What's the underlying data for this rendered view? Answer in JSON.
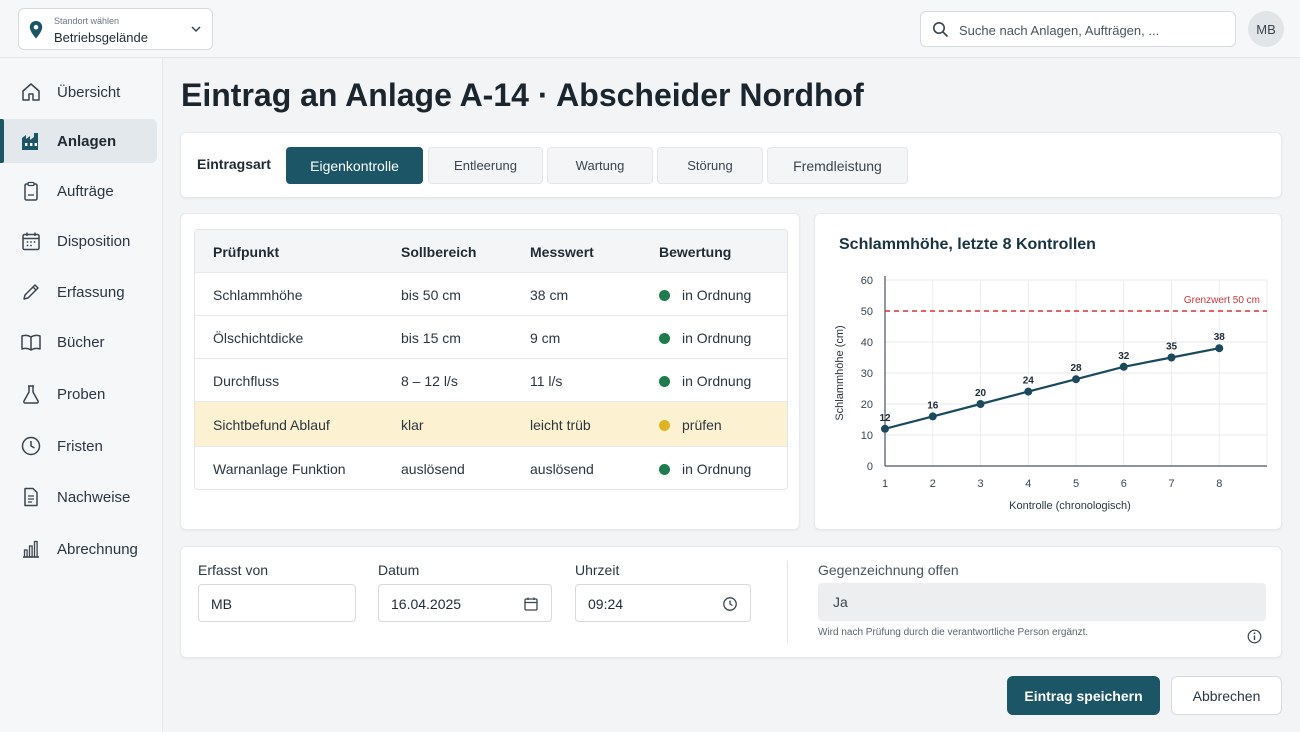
{
  "location": {
    "caption": "Standort wählen",
    "value": "Betriebsgelände"
  },
  "search": {
    "placeholder": "Suche nach Anlagen, Aufträgen, ..."
  },
  "user": {
    "initials": "MB"
  },
  "sidebar": {
    "items": [
      {
        "label": "Übersicht",
        "icon": "home-icon"
      },
      {
        "label": "Anlagen",
        "icon": "plant-icon",
        "active": true
      },
      {
        "label": "Aufträge",
        "icon": "clipboard-icon"
      },
      {
        "label": "Disposition",
        "icon": "calendar-icon"
      },
      {
        "label": "Erfassung",
        "icon": "pencil-icon"
      },
      {
        "label": "Bücher",
        "icon": "book-icon"
      },
      {
        "label": "Proben",
        "icon": "flask-icon"
      },
      {
        "label": "Fristen",
        "icon": "clock-icon"
      },
      {
        "label": "Nachweise",
        "icon": "document-icon"
      },
      {
        "label": "Abrechnung",
        "icon": "bar-chart-icon"
      }
    ]
  },
  "page": {
    "title": "Eintrag an Anlage A-14 · Abscheider Nordhof"
  },
  "entry_type": {
    "label": "Eintragsart",
    "tabs": [
      "Eigenkontrolle",
      "Entleerung",
      "Wartung",
      "Störung",
      "Fremdleistung"
    ],
    "active": "Eigenkontrolle"
  },
  "table": {
    "headers": [
      "Prüfpunkt",
      "Sollbereich",
      "Messwert",
      "Bewertung"
    ],
    "rows": [
      {
        "point": "Schlammhöhe",
        "target": "bis 50 cm",
        "value": "38 cm",
        "rating": "in Ordnung",
        "status": "ok"
      },
      {
        "point": "Ölschichtdicke",
        "target": "bis 15 cm",
        "value": "9 cm",
        "rating": "in Ordnung",
        "status": "ok"
      },
      {
        "point": "Durchfluss",
        "target": "8 – 12 l/s",
        "value": "11 l/s",
        "rating": "in Ordnung",
        "status": "ok"
      },
      {
        "point": "Sichtbefund Ablauf",
        "target": "klar",
        "value": "leicht trüb",
        "rating": "prüfen",
        "status": "warn"
      },
      {
        "point": "Warnanlage Funktion",
        "target": "auslösend",
        "value": "auslösend",
        "rating": "in Ordnung",
        "status": "ok"
      }
    ],
    "status_colors": {
      "ok": "#1f7a4d",
      "warn": "#e0b325"
    }
  },
  "chart_data": {
    "type": "line",
    "title": "Schlammhöhe, letzte 8 Kontrollen",
    "xlabel": "Kontrolle (chronologisch)",
    "ylabel": "Schlammhöhe (cm)",
    "x": [
      1,
      2,
      3,
      4,
      5,
      6,
      7,
      8
    ],
    "values": [
      12,
      16,
      20,
      24,
      28,
      32,
      35,
      38
    ],
    "ylim": [
      0,
      60
    ],
    "yticks": [
      0,
      10,
      20,
      30,
      40,
      50,
      60
    ],
    "threshold": {
      "value": 50,
      "label": "Grenzwert 50 cm",
      "color": "#d0343a"
    },
    "line_color": "#1b4a5c",
    "grid": true
  },
  "form": {
    "captured_by": {
      "label": "Erfasst von",
      "value": "MB"
    },
    "date": {
      "label": "Datum",
      "value": "16.04.2025"
    },
    "time": {
      "label": "Uhrzeit",
      "value": "09:24"
    },
    "countersign": {
      "label": "Gegenzeichnung offen",
      "value": "Ja",
      "hint": "Wird nach Prüfung durch die verantwortliche Person ergänzt."
    }
  },
  "actions": {
    "save": "Eintrag speichern",
    "cancel": "Abbrechen"
  },
  "colors": {
    "accent": "#1b5566",
    "highlight_row": "#fcf1d1"
  }
}
